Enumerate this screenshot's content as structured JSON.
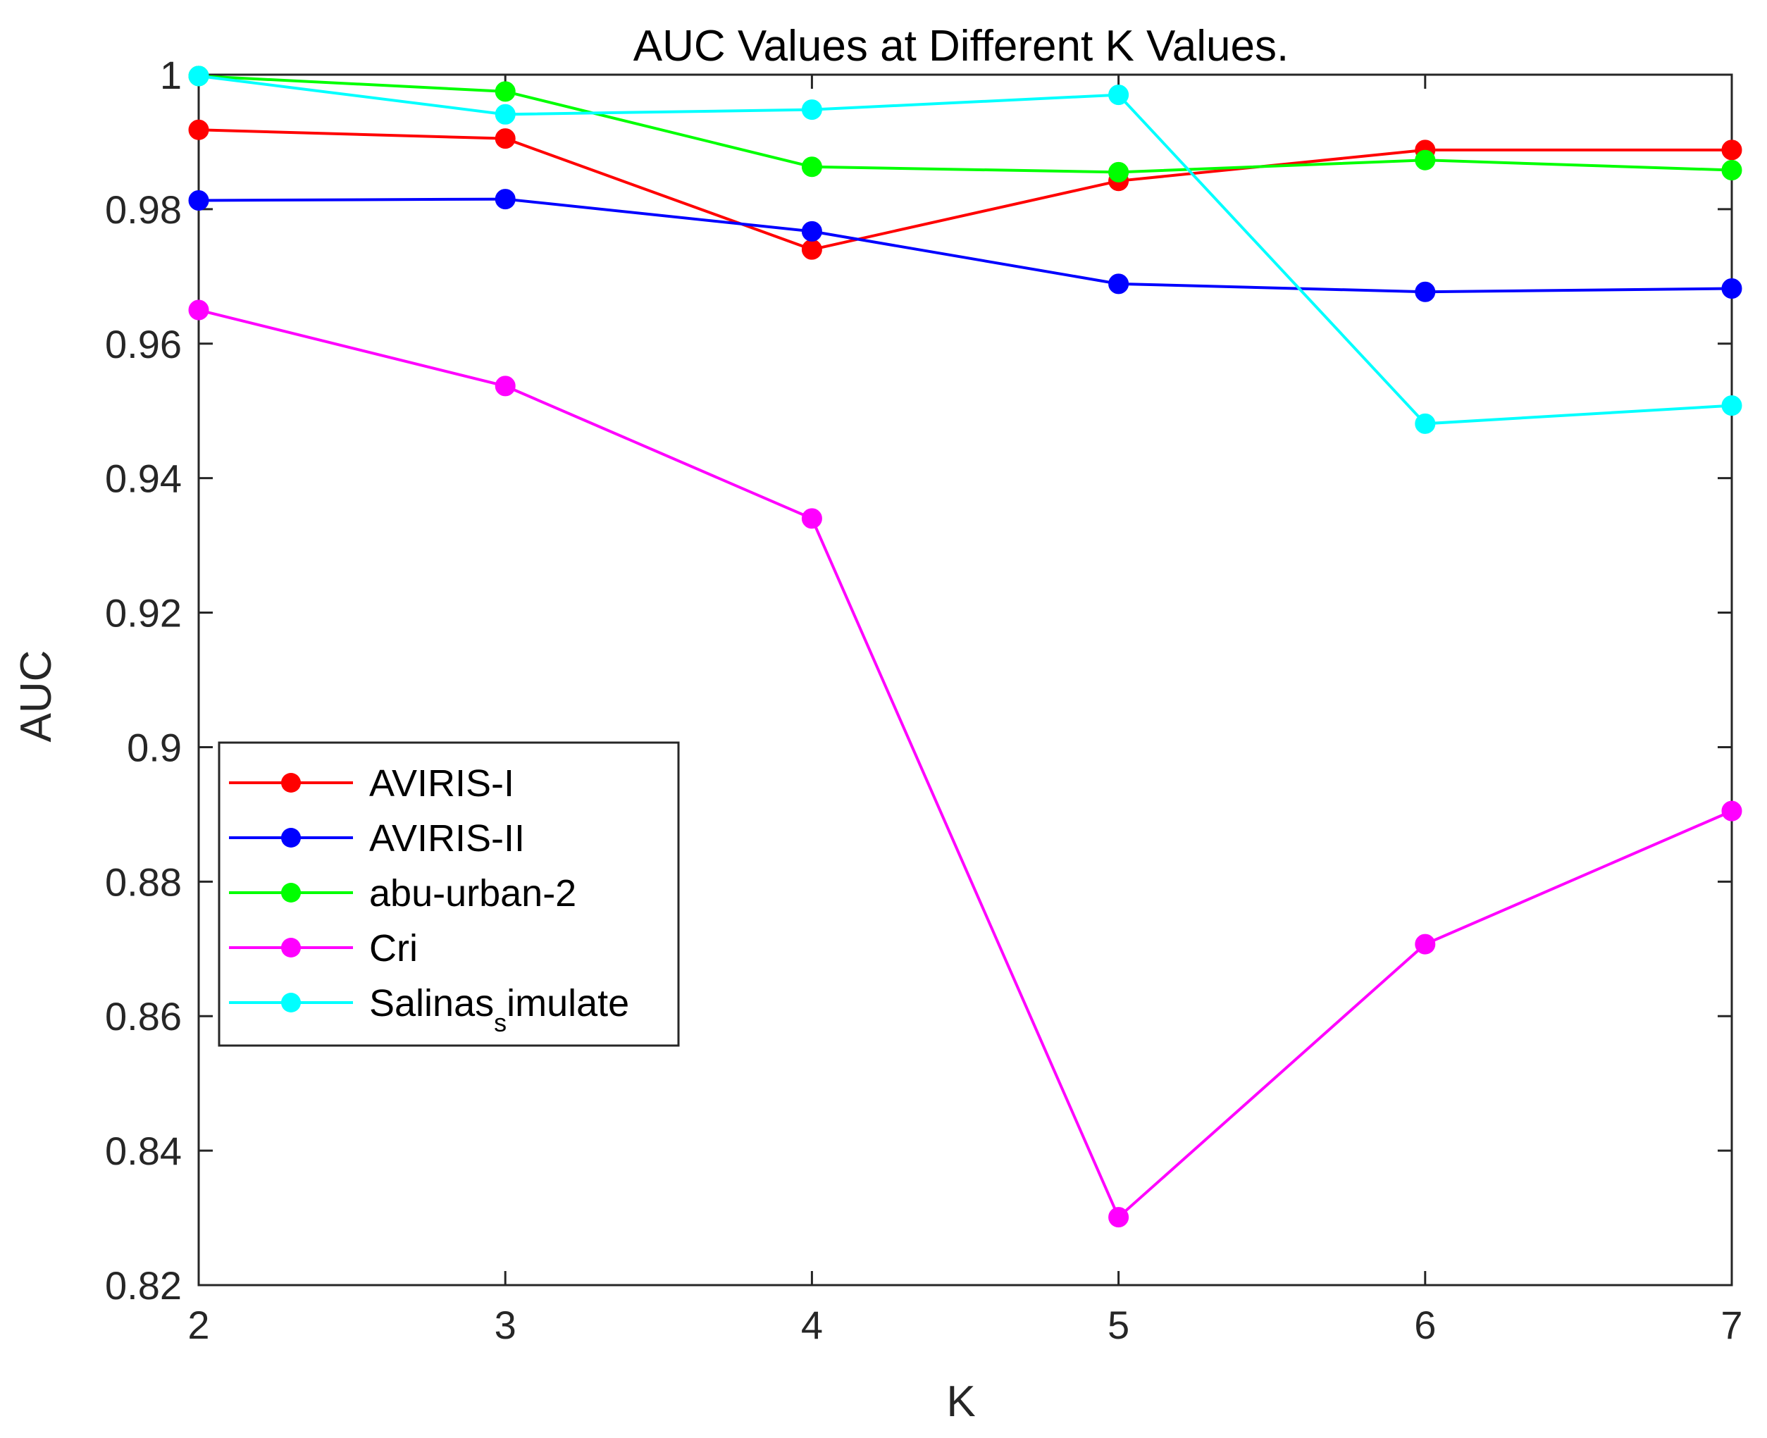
{
  "chart_data": {
    "type": "line",
    "title": "AUC Values at Different K Values.",
    "xlabel": "K",
    "ylabel": "AUC",
    "xlim": [
      2,
      7
    ],
    "ylim": [
      0.82,
      1.0
    ],
    "x": [
      2,
      3,
      4,
      5,
      6,
      7
    ],
    "xticks": [
      "2",
      "3",
      "4",
      "5",
      "6",
      "7"
    ],
    "yticks": [
      "0.82",
      "0.84",
      "0.86",
      "0.88",
      "0.9",
      "0.92",
      "0.94",
      "0.96",
      "0.98",
      "1"
    ],
    "ytick_values": [
      0.82,
      0.84,
      0.86,
      0.88,
      0.9,
      0.92,
      0.94,
      0.96,
      0.98,
      1.0
    ],
    "grid": false,
    "legend_position": "left-middle",
    "series": [
      {
        "name": "AVIRIS-I",
        "color": "#ff0000",
        "values": [
          0.9918,
          0.9905,
          0.974,
          0.9842,
          0.9888,
          0.9888
        ]
      },
      {
        "name": "AVIRIS-II",
        "color": "#0000ff",
        "values": [
          0.9813,
          0.9815,
          0.9767,
          0.9689,
          0.9677,
          0.9682
        ]
      },
      {
        "name": "abu-urban-2",
        "color": "#00ff00",
        "values": [
          0.9998,
          0.9975,
          0.9863,
          0.9855,
          0.9873,
          0.9858
        ]
      },
      {
        "name": "Cri",
        "color": "#ff00ff",
        "values": [
          0.965,
          0.9537,
          0.934,
          0.8301,
          0.8707,
          0.8905
        ]
      },
      {
        "name": "Salinas_simulate",
        "color": "#00ffff",
        "values": [
          0.9998,
          0.9941,
          0.9948,
          0.997,
          0.9481,
          0.9508
        ]
      }
    ],
    "legend_labels": [
      {
        "main": "AVIRIS-I"
      },
      {
        "main": "AVIRIS-II"
      },
      {
        "main": "abu-urban-2"
      },
      {
        "main": "Cri"
      },
      {
        "main": "Salinas",
        "sub": "s",
        "rest": "imulate"
      }
    ]
  }
}
